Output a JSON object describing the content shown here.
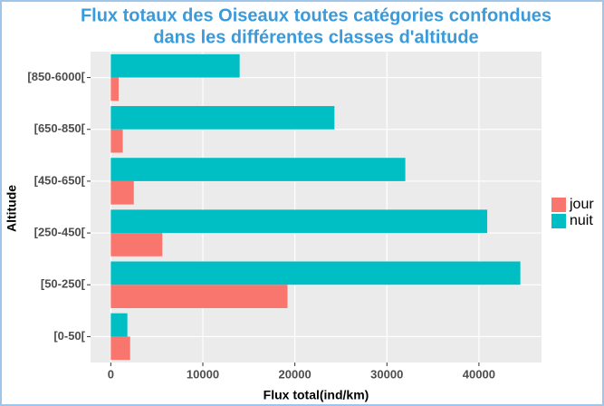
{
  "chart_data": {
    "type": "bar",
    "orientation": "horizontal",
    "title": [
      "Flux totaux des Oiseaux toutes catégories confondues",
      "dans les différentes classes d'altitude"
    ],
    "x_label": "Flux total(ind/km)",
    "y_label": "Altitude",
    "categories": [
      "[0-50[",
      "[50-250[",
      "[250-450[",
      "[450-650[",
      "[650-850[",
      "[850-6000["
    ],
    "series": [
      {
        "name": "jour",
        "color": "#f8766d",
        "values": [
          2100,
          19200,
          5600,
          2500,
          1300,
          850
        ]
      },
      {
        "name": "nuit",
        "color": "#00bfc4",
        "values": [
          1800,
          44500,
          40900,
          32000,
          24300,
          14000
        ]
      }
    ],
    "xlim": [
      -2200,
      46800
    ],
    "xticks": [
      0,
      10000,
      20000,
      30000,
      40000
    ],
    "grid": true,
    "legend": "right"
  }
}
